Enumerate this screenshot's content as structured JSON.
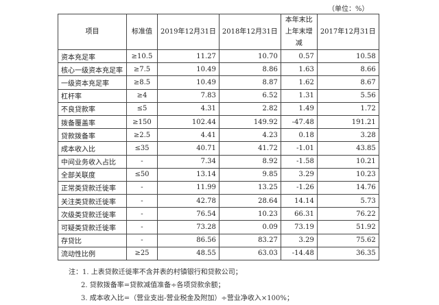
{
  "unit_label": "（单位：%）",
  "table": {
    "headers": [
      "项目",
      "标准值",
      "2019年12月31日",
      "2018年12月31日",
      "本年末比上年末增减",
      "2017年12月31日"
    ],
    "rows": [
      [
        "资本充足率",
        "≥10.5",
        "11.27",
        "10.70",
        "0.57",
        "10.58"
      ],
      [
        "核心一级资本充足率",
        "≥7.5",
        "10.49",
        "8.86",
        "1.63",
        "8.66"
      ],
      [
        "一级资本充足率",
        "≥8.5",
        "10.49",
        "8.87",
        "1.62",
        "8.67"
      ],
      [
        "杠杆率",
        "≥4",
        "7.83",
        "6.52",
        "1.31",
        "5.56"
      ],
      [
        "不良贷款率",
        "≤5",
        "4.31",
        "2.82",
        "1.49",
        "1.72"
      ],
      [
        "拨备覆盖率",
        "≥150",
        "102.44",
        "149.92",
        "-47.48",
        "191.21"
      ],
      [
        "贷款拨备率",
        "≥2.5",
        "4.41",
        "4.23",
        "0.18",
        "3.28"
      ],
      [
        "成本收入比",
        "≤35",
        "40.71",
        "41.72",
        "-1.01",
        "43.85"
      ],
      [
        "中间业务收入占比",
        "-",
        "7.34",
        "8.92",
        "-1.58",
        "10.21"
      ],
      [
        "全部关联度",
        "≤50",
        "13.14",
        "9.85",
        "3.29",
        "10.23"
      ],
      [
        "正常类贷款迁徙率",
        "-",
        "11.99",
        "13.25",
        "-1.26",
        "14.76"
      ],
      [
        "关注类贷款迁徙率",
        "-",
        "42.78",
        "28.64",
        "14.14",
        "5.73"
      ],
      [
        "次级类贷款迁徙率",
        "-",
        "76.54",
        "10.23",
        "66.31",
        "76.22"
      ],
      [
        "可疑类贷款迁徙率",
        "-",
        "73.28",
        "0.09",
        "73.19",
        "51.92"
      ],
      [
        "存贷比",
        "-",
        "86.56",
        "83.27",
        "3.29",
        "75.62"
      ],
      [
        "流动性比例",
        "≥25",
        "48.55",
        "63.03",
        "-14.48",
        "36.35"
      ]
    ]
  },
  "notes": {
    "note1": "注：1. 上表贷款迁徙率不含并表的村镇银行和贷款公司；",
    "note2": "2. 贷款拨备率=贷款减值准备÷各项贷款余额；",
    "note3": "3. 成本收入比=（营业支出-营业税金及附加）÷营业净收入×100%；"
  }
}
